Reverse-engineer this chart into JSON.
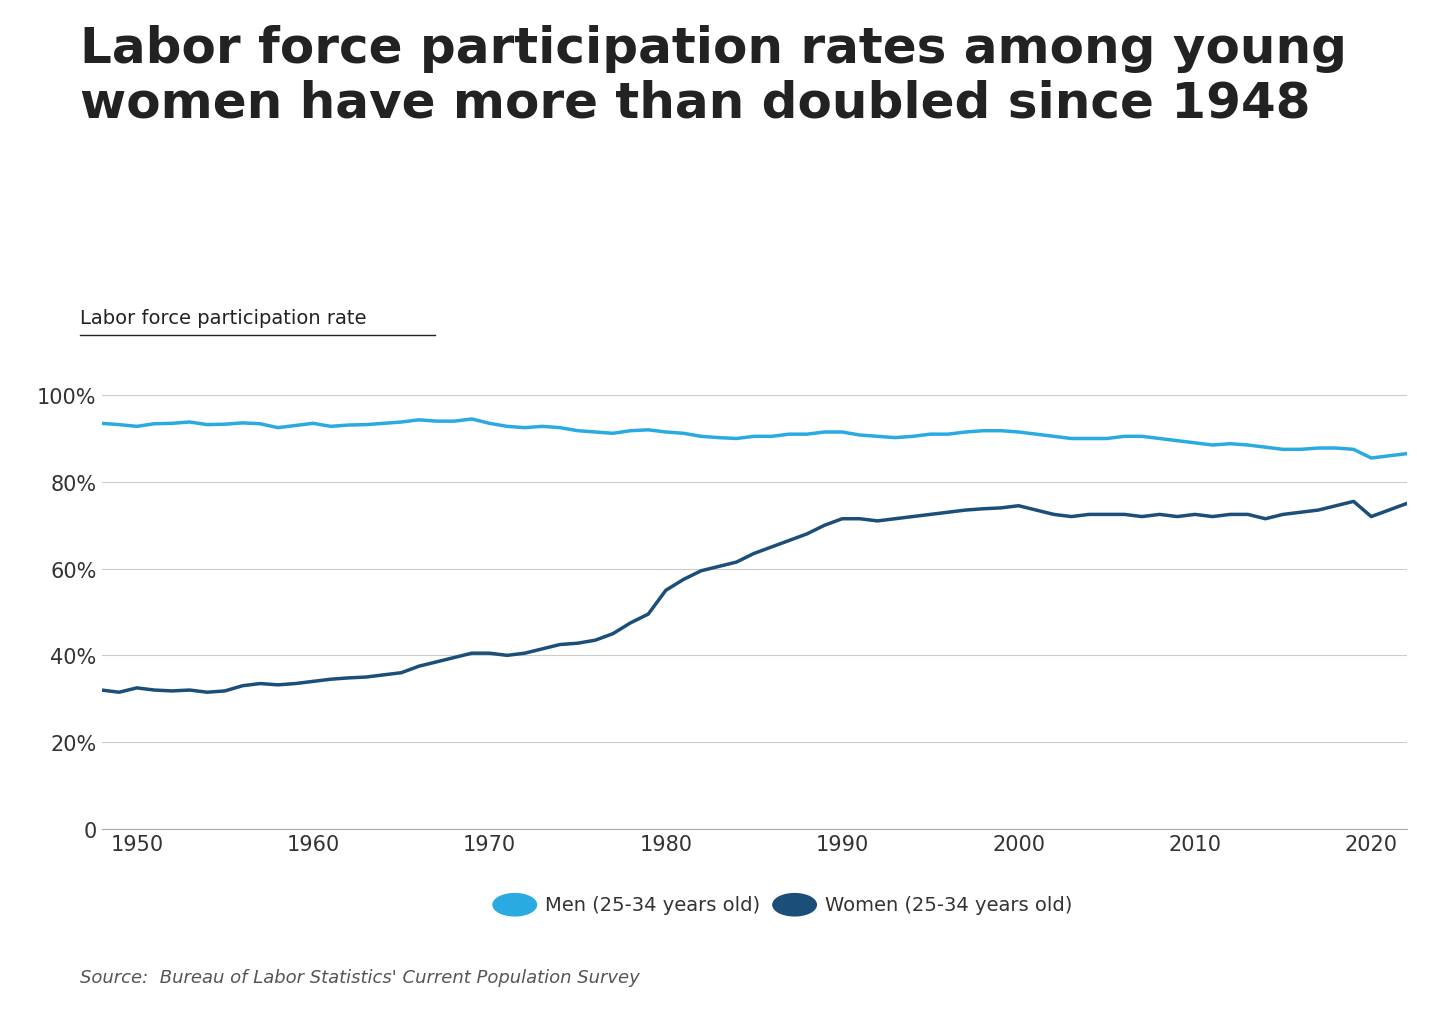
{
  "title_line1": "Labor force participation rates among young",
  "title_line2": "women have more than doubled since 1948",
  "ylabel": "Labor force participation rate",
  "source": "Source:  Bureau of Labor Statistics' Current Population Survey",
  "title_fontsize": 36,
  "ylabel_fontsize": 14,
  "source_fontsize": 13,
  "background_color": "#ffffff",
  "men_color": "#29ABE2",
  "women_color": "#1B4F7A",
  "xlim": [
    1948,
    2022
  ],
  "ylim": [
    0,
    105
  ],
  "yticks": [
    0,
    20,
    40,
    60,
    80,
    100
  ],
  "ytick_labels": [
    "0",
    "20%",
    "40%",
    "60%",
    "80%",
    "100%"
  ],
  "xticks": [
    1950,
    1960,
    1970,
    1980,
    1990,
    2000,
    2010,
    2020
  ],
  "men_years": [
    1948,
    1949,
    1950,
    1951,
    1952,
    1953,
    1954,
    1955,
    1956,
    1957,
    1958,
    1959,
    1960,
    1961,
    1962,
    1963,
    1964,
    1965,
    1966,
    1967,
    1968,
    1969,
    1970,
    1971,
    1972,
    1973,
    1974,
    1975,
    1976,
    1977,
    1978,
    1979,
    1980,
    1981,
    1982,
    1983,
    1984,
    1985,
    1986,
    1987,
    1988,
    1989,
    1990,
    1991,
    1992,
    1993,
    1994,
    1995,
    1996,
    1997,
    1998,
    1999,
    2000,
    2001,
    2002,
    2003,
    2004,
    2005,
    2006,
    2007,
    2008,
    2009,
    2010,
    2011,
    2012,
    2013,
    2014,
    2015,
    2016,
    2017,
    2018,
    2019,
    2020,
    2021,
    2022
  ],
  "men_values": [
    93.5,
    93.2,
    92.8,
    93.4,
    93.5,
    93.8,
    93.2,
    93.3,
    93.6,
    93.4,
    92.5,
    93.0,
    93.5,
    92.8,
    93.1,
    93.2,
    93.5,
    93.8,
    94.3,
    94.0,
    94.0,
    94.5,
    93.5,
    92.8,
    92.5,
    92.8,
    92.5,
    91.8,
    91.5,
    91.2,
    91.8,
    92.0,
    91.5,
    91.2,
    90.5,
    90.2,
    90.0,
    90.5,
    90.5,
    91.0,
    91.0,
    91.5,
    91.5,
    90.8,
    90.5,
    90.2,
    90.5,
    91.0,
    91.0,
    91.5,
    91.8,
    91.8,
    91.5,
    91.0,
    90.5,
    90.0,
    90.0,
    90.0,
    90.5,
    90.5,
    90.0,
    89.5,
    89.0,
    88.5,
    88.8,
    88.5,
    88.0,
    87.5,
    87.5,
    87.8,
    87.8,
    87.5,
    85.5,
    86.0,
    86.5
  ],
  "women_years": [
    1948,
    1949,
    1950,
    1951,
    1952,
    1953,
    1954,
    1955,
    1956,
    1957,
    1958,
    1959,
    1960,
    1961,
    1962,
    1963,
    1964,
    1965,
    1966,
    1967,
    1968,
    1969,
    1970,
    1971,
    1972,
    1973,
    1974,
    1975,
    1976,
    1977,
    1978,
    1979,
    1980,
    1981,
    1982,
    1983,
    1984,
    1985,
    1986,
    1987,
    1988,
    1989,
    1990,
    1991,
    1992,
    1993,
    1994,
    1995,
    1996,
    1997,
    1998,
    1999,
    2000,
    2001,
    2002,
    2003,
    2004,
    2005,
    2006,
    2007,
    2008,
    2009,
    2010,
    2011,
    2012,
    2013,
    2014,
    2015,
    2016,
    2017,
    2018,
    2019,
    2020,
    2021,
    2022
  ],
  "women_values": [
    32.0,
    31.5,
    32.5,
    32.0,
    31.8,
    32.0,
    31.5,
    31.8,
    33.0,
    33.5,
    33.2,
    33.5,
    34.0,
    34.5,
    34.8,
    35.0,
    35.5,
    36.0,
    37.5,
    38.5,
    39.5,
    40.5,
    40.5,
    40.0,
    40.5,
    41.5,
    42.5,
    42.8,
    43.5,
    45.0,
    47.5,
    49.5,
    55.0,
    57.5,
    59.5,
    60.5,
    61.5,
    63.5,
    65.0,
    66.5,
    68.0,
    70.0,
    71.5,
    71.5,
    71.0,
    71.5,
    72.0,
    72.5,
    73.0,
    73.5,
    73.8,
    74.0,
    74.5,
    73.5,
    72.5,
    72.0,
    72.5,
    72.5,
    72.5,
    72.0,
    72.5,
    72.0,
    72.5,
    72.0,
    72.5,
    72.5,
    71.5,
    72.5,
    73.0,
    73.5,
    74.5,
    75.5,
    72.0,
    73.5,
    75.0
  ],
  "legend_men_label": "Men (25-34 years old)",
  "legend_women_label": "Women (25-34 years old)"
}
